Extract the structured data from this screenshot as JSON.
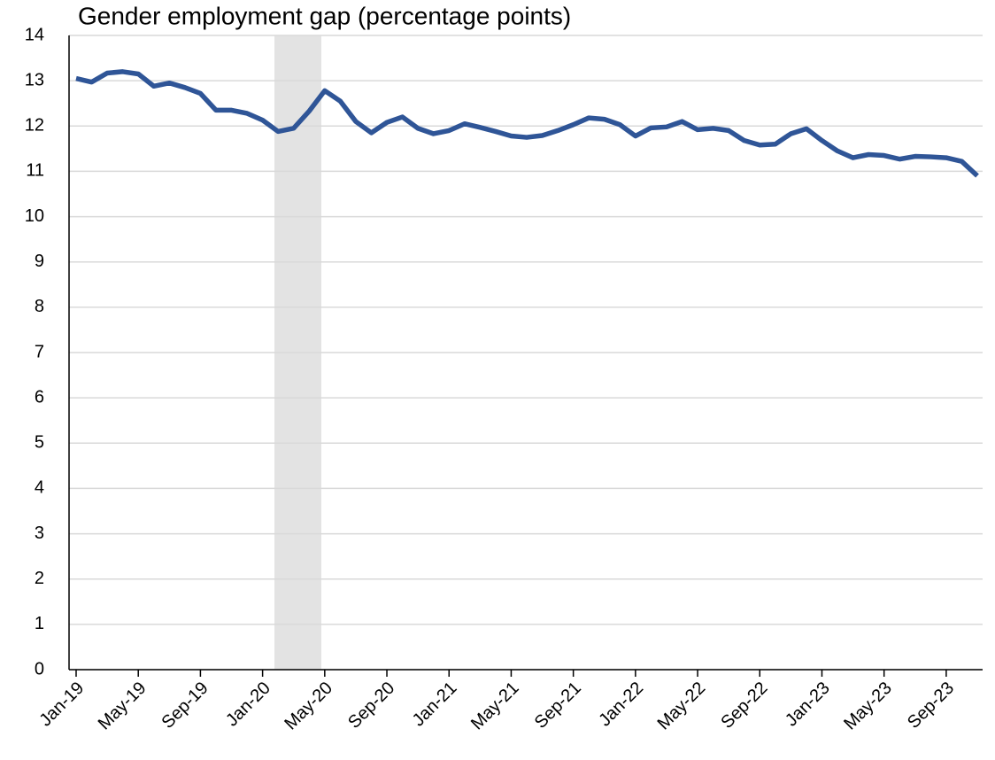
{
  "chart_data": {
    "type": "line",
    "title": "Gender employment gap (percentage points)",
    "categories": [
      "Jan-19",
      null,
      null,
      null,
      "May-19",
      null,
      null,
      null,
      "Sep-19",
      null,
      null,
      null,
      "Jan-20",
      null,
      null,
      null,
      "May-20",
      null,
      null,
      null,
      "Sep-20",
      null,
      null,
      null,
      "Jan-21",
      null,
      null,
      null,
      "May-21",
      null,
      null,
      null,
      "Sep-21",
      null,
      null,
      null,
      "Jan-22",
      null,
      null,
      null,
      "May-22",
      null,
      null,
      null,
      "Sep-22",
      null,
      null,
      null,
      "Jan-23",
      null,
      null,
      null,
      "May-23",
      null,
      null,
      null,
      "Sep-23",
      null,
      null
    ],
    "series": [
      {
        "name": "Gender employment gap",
        "color": "#2f5597",
        "values": [
          13.05,
          12.97,
          13.17,
          13.2,
          13.15,
          12.88,
          12.95,
          12.85,
          12.72,
          12.35,
          12.35,
          12.28,
          12.13,
          11.88,
          11.95,
          12.33,
          12.78,
          12.55,
          12.1,
          11.85,
          12.08,
          12.2,
          11.95,
          11.83,
          11.9,
          12.05,
          11.97,
          11.88,
          11.78,
          11.75,
          11.79,
          11.9,
          12.03,
          12.18,
          12.15,
          12.03,
          11.78,
          11.96,
          11.98,
          12.1,
          11.92,
          11.95,
          11.9,
          11.68,
          11.58,
          11.6,
          11.83,
          11.94,
          11.68,
          11.45,
          11.3,
          11.37,
          11.35,
          11.27,
          11.33,
          11.32,
          11.3,
          11.22,
          10.9
        ]
      }
    ],
    "ylim": [
      0,
      14
    ],
    "yticks": [
      0,
      1,
      2,
      3,
      4,
      5,
      6,
      7,
      8,
      9,
      10,
      11,
      12,
      13,
      14
    ],
    "grid": true
  }
}
